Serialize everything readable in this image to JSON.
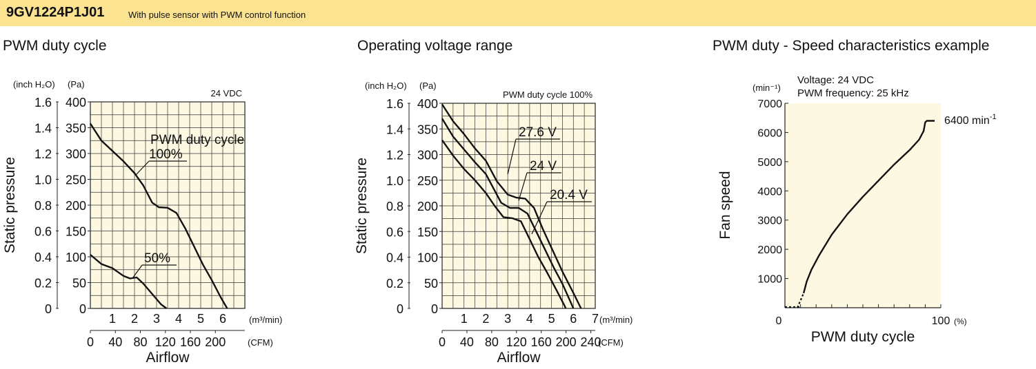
{
  "header": {
    "model": "9GV1224P1J01",
    "description": "With pulse sensor with PWM control function",
    "bg_color": "#fbe392"
  },
  "plot_bg_color": "#fdf8e1",
  "chart_data": [
    {
      "type": "line",
      "title": "PWM duty cycle",
      "annotation": "24 VDC",
      "xlabel": "Airflow",
      "x_unit": "(m³/min)",
      "x2_unit": "(CFM)",
      "ylabel": "Static pressure",
      "y_unit": "(Pa)",
      "y2_unit": "(inch H₂O)",
      "xlim": [
        0,
        7
      ],
      "ylim": [
        0,
        400
      ],
      "x_ticks": [
        "1",
        "2",
        "3",
        "4",
        "5",
        "6"
      ],
      "x_ticks_values": [
        1,
        2,
        3,
        4,
        5,
        6
      ],
      "cfm_ticks": [
        "0",
        "40",
        "80",
        "120",
        "160",
        "200"
      ],
      "cfm_ticks_values": [
        0,
        40,
        80,
        120,
        160,
        200
      ],
      "y_ticks": [
        "0",
        "50",
        "100",
        "150",
        "200",
        "250",
        "300",
        "350",
        "400"
      ],
      "y_ticks_values": [
        0,
        50,
        100,
        150,
        200,
        250,
        300,
        350,
        400
      ],
      "y2_ticks": [
        "0",
        "0.2",
        "0.4",
        "0.6",
        "0.8",
        "1.0",
        "1.2",
        "1.4",
        "1.6"
      ],
      "y2_ticks_values": [
        0,
        0.2,
        0.4,
        0.6,
        0.8,
        1.0,
        1.2,
        1.4,
        1.6
      ],
      "legend_heading": "PWM duty cycle",
      "series": [
        {
          "name": "100%",
          "points": [
            [
              0,
              358
            ],
            [
              0.5,
              325
            ],
            [
              1,
              305
            ],
            [
              1.5,
              285
            ],
            [
              2,
              262
            ],
            [
              2.4,
              238
            ],
            [
              2.8,
              205
            ],
            [
              3.1,
              196
            ],
            [
              3.5,
              195
            ],
            [
              3.9,
              185
            ],
            [
              4.3,
              155
            ],
            [
              4.7,
              120
            ],
            [
              5.1,
              85
            ],
            [
              5.5,
              55
            ],
            [
              5.9,
              22
            ],
            [
              6.2,
              0
            ]
          ]
        },
        {
          "name": "50%",
          "points": [
            [
              0,
              104
            ],
            [
              0.5,
              86
            ],
            [
              1,
              78
            ],
            [
              1.5,
              63
            ],
            [
              1.8,
              58
            ],
            [
              2.1,
              60
            ],
            [
              2.4,
              48
            ],
            [
              2.8,
              28
            ],
            [
              3.2,
              8
            ],
            [
              3.45,
              0
            ]
          ]
        }
      ]
    },
    {
      "type": "line",
      "title": "Operating voltage range",
      "annotation": "PWM duty cycle 100%",
      "xlabel": "Airflow",
      "x_unit": "(m³/min)",
      "x2_unit": "(CFM)",
      "ylabel": "Static pressure",
      "y_unit": "(Pa)",
      "y2_unit": "(inch H₂O)",
      "xlim": [
        0,
        7
      ],
      "ylim": [
        0,
        400
      ],
      "x_ticks": [
        "1",
        "2",
        "3",
        "4",
        "5",
        "6",
        "7"
      ],
      "x_ticks_values": [
        1,
        2,
        3,
        4,
        5,
        6,
        7
      ],
      "cfm_ticks": [
        "0",
        "40",
        "80",
        "120",
        "160",
        "200",
        "240"
      ],
      "cfm_ticks_values": [
        0,
        40,
        80,
        120,
        160,
        200,
        240
      ],
      "y_ticks": [
        "0",
        "50",
        "100",
        "150",
        "200",
        "250",
        "300",
        "350",
        "400"
      ],
      "y_ticks_values": [
        0,
        50,
        100,
        150,
        200,
        250,
        300,
        350,
        400
      ],
      "y2_ticks": [
        "0",
        "0.2",
        "0.4",
        "0.6",
        "0.8",
        "1.0",
        "1.2",
        "1.4",
        "1.6"
      ],
      "y2_ticks_values": [
        0,
        0.2,
        0.4,
        0.6,
        0.8,
        1.0,
        1.2,
        1.4,
        1.6
      ],
      "series": [
        {
          "name": "27.6 V",
          "points": [
            [
              0,
              398
            ],
            [
              0.5,
              365
            ],
            [
              1,
              340
            ],
            [
              1.5,
              312
            ],
            [
              2,
              288
            ],
            [
              2.5,
              248
            ],
            [
              3,
              222
            ],
            [
              3.4,
              216
            ],
            [
              3.8,
              214
            ],
            [
              4.2,
              196
            ],
            [
              4.6,
              155
            ],
            [
              5,
              118
            ],
            [
              5.5,
              72
            ],
            [
              6,
              30
            ],
            [
              6.35,
              0
            ]
          ]
        },
        {
          "name": "24 V",
          "points": [
            [
              0,
              370
            ],
            [
              0.5,
              335
            ],
            [
              1,
              310
            ],
            [
              1.5,
              285
            ],
            [
              2,
              262
            ],
            [
              2.3,
              238
            ],
            [
              2.7,
              206
            ],
            [
              3.1,
              196
            ],
            [
              3.5,
              196
            ],
            [
              3.9,
              185
            ],
            [
              4.3,
              150
            ],
            [
              4.7,
              115
            ],
            [
              5.1,
              80
            ],
            [
              5.5,
              48
            ],
            [
              5.9,
              10
            ],
            [
              6.0,
              0
            ]
          ]
        },
        {
          "name": "20.4 V",
          "points": [
            [
              0,
              328
            ],
            [
              0.5,
              298
            ],
            [
              1,
              272
            ],
            [
              1.5,
              250
            ],
            [
              2,
              225
            ],
            [
              2.4,
              200
            ],
            [
              2.8,
              178
            ],
            [
              3.2,
              176
            ],
            [
              3.6,
              170
            ],
            [
              4,
              135
            ],
            [
              4.4,
              100
            ],
            [
              4.8,
              70
            ],
            [
              5.2,
              38
            ],
            [
              5.6,
              5
            ],
            [
              5.65,
              0
            ]
          ]
        }
      ]
    },
    {
      "type": "line",
      "title": "PWM duty - Speed characteristics example",
      "annotations": [
        "Voltage: 24 VDC",
        "PWM frequency: 25 kHz"
      ],
      "xlabel": "PWM duty cycle",
      "x_unit": "(%)",
      "ylabel": "Fan speed",
      "y_unit": "(min⁻¹)",
      "xlim": [
        0,
        100
      ],
      "ylim": [
        0,
        7000
      ],
      "x_ticks": [
        "0",
        "100"
      ],
      "x_ticks_values": [
        0,
        100
      ],
      "y_ticks": [
        "1000",
        "2000",
        "3000",
        "4000",
        "5000",
        "6000",
        "7000"
      ],
      "y_ticks_values": [
        1000,
        2000,
        3000,
        4000,
        5000,
        6000,
        7000
      ],
      "max_label": "6400 min",
      "max_label_sup": "-1",
      "series": [
        {
          "name": "",
          "points": [
            [
              10,
              0
            ],
            [
              12,
              500
            ],
            [
              14,
              900
            ],
            [
              17,
              1300
            ],
            [
              22,
              1800
            ],
            [
              30,
              2500
            ],
            [
              40,
              3200
            ],
            [
              50,
              3800
            ],
            [
              60,
              4350
            ],
            [
              70,
              4900
            ],
            [
              80,
              5400
            ],
            [
              86,
              5750
            ],
            [
              89,
              6050
            ],
            [
              90,
              6350
            ],
            [
              91,
              6400
            ],
            [
              96,
              6400
            ]
          ]
        }
      ],
      "dashed_segment": [
        [
          0,
          0
        ],
        [
          10,
          0
        ]
      ]
    }
  ]
}
